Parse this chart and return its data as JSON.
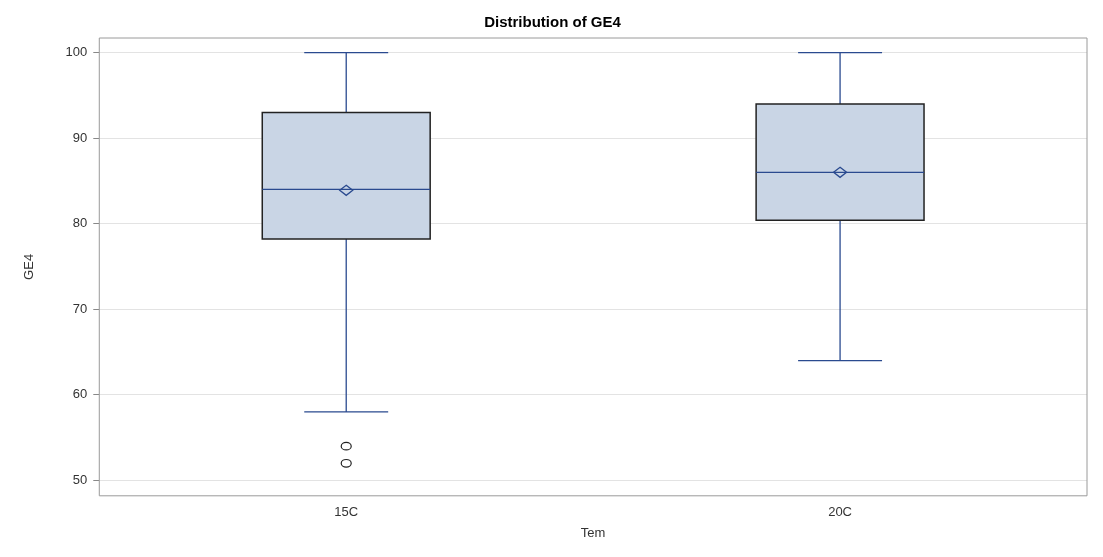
{
  "chart_data": {
    "type": "box",
    "title": "Distribution of GE4",
    "xlabel": "Tem",
    "ylabel": "GE4",
    "categories": [
      "15C",
      "20C"
    ],
    "boxes": [
      {
        "low": 58,
        "q1": 78.2,
        "median": 84,
        "q3": 93,
        "high": 100,
        "mean": 83.9,
        "outliers": [
          54,
          52
        ]
      },
      {
        "low": 64,
        "q1": 80.4,
        "median": 86,
        "q3": 94,
        "high": 100,
        "mean": 86
      }
    ],
    "color": "#c9d5e5",
    "marker": "diamond",
    "ylim": [
      48.2,
      101.7
    ],
    "yticks": [
      50,
      60,
      70,
      80,
      90,
      100
    ],
    "grid": "y"
  }
}
